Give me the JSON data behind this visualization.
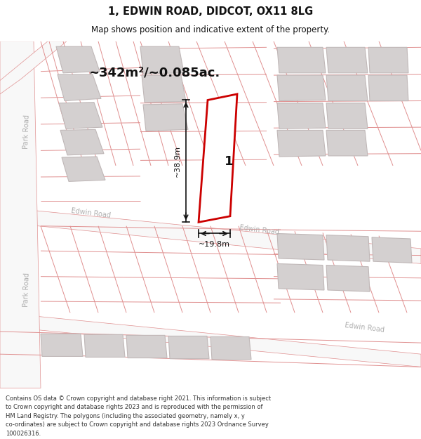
{
  "title": "1, EDWIN ROAD, DIDCOT, OX11 8LG",
  "subtitle": "Map shows position and indicative extent of the property.",
  "area_text": "~342m²/~0.085ac.",
  "dim_height": "~38.9m",
  "dim_width": "~19.8m",
  "plot_label": "1",
  "footer_lines": [
    "Contains OS data © Crown copyright and database right 2021. This information is subject",
    "to Crown copyright and database rights 2023 and is reproduced with the permission of",
    "HM Land Registry. The polygons (including the associated geometry, namely x, y",
    "co-ordinates) are subject to Crown copyright and database rights 2023 Ordnance Survey",
    "100026316."
  ],
  "map_bg": "#eeecec",
  "road_fill": "#f8f8f8",
  "building_fill": "#d4d0d0",
  "road_stroke": "#e09090",
  "building_stroke": "#c0b8b8",
  "plot_stroke": "#cc0000",
  "plot_fill": "#ffffff",
  "dim_color": "#111111",
  "road_label_color": "#b0b0b0",
  "title_color": "#111111",
  "footer_color": "#333333"
}
